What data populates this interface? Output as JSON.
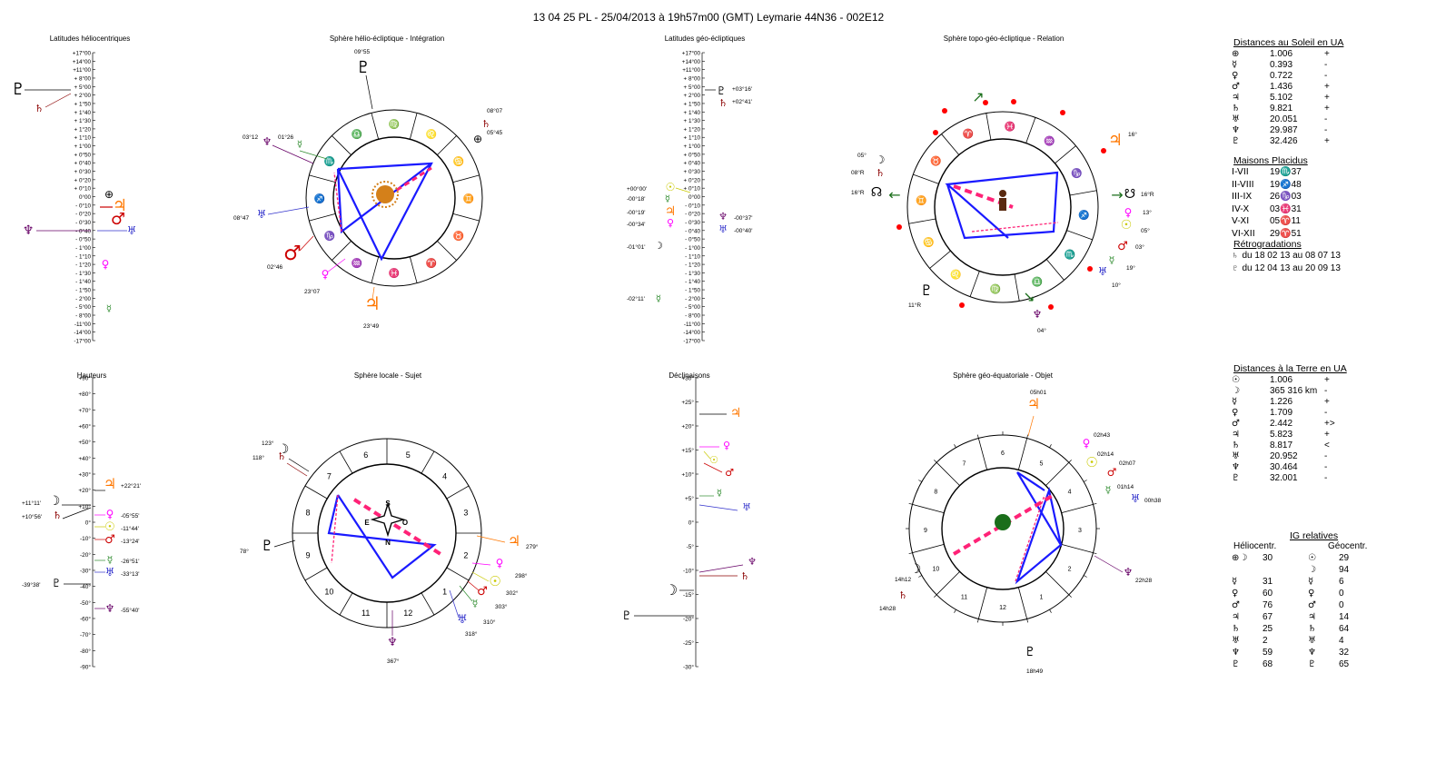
{
  "header": {
    "title": "13 04 25 PL    -   25/04/2013 à 19h57m00 (GMT)  Leymarie  44N36 - 002E12"
  },
  "panels": {
    "helio_lat_title": "Latitudes héliocentriques",
    "helio_sphere_title": "Sphère hélio-écliptique - Intégration",
    "geo_lat_title": "Latitudes géo-écliptiques",
    "topo_sphere_title": "Sphère topo-géo-écliptique - Relation",
    "heights_title": "Hauteurs",
    "local_sphere_title": "Sphère locale - Sujet",
    "decl_title": "Déclinaisons",
    "geo_eq_title": "Sphère géo-équatoriale - Objet"
  },
  "scales": {
    "latitude_ticks": [
      "+17°00",
      "+14°00",
      "+11°00",
      "+ 8°00",
      "+ 5°00",
      "+ 2°00",
      "+ 1°50",
      "+ 1°40",
      "+ 1°30",
      "+ 1°20",
      "+ 1°10",
      "+ 1°00",
      "+ 0°50",
      "+ 0°40",
      "+ 0°30",
      "+ 0°20",
      "+ 0°10",
      "0°00",
      "- 0°10",
      "- 0°20",
      "- 0°30",
      "- 0°40",
      "- 0°50",
      "- 1°00",
      "- 1°10",
      "- 1°20",
      "- 1°30",
      "- 1°40",
      "- 1°50",
      "- 2°00",
      "- 5°00",
      "- 8°00",
      "-11°00",
      "-14°00",
      "-17°00"
    ],
    "height_ticks": [
      "+90°",
      "+80°",
      "+70°",
      "+60°",
      "+50°",
      "+40°",
      "+30°",
      "+20°",
      "+10°",
      "0°",
      "-10°",
      "-20°",
      "-30°",
      "-40°",
      "-50°",
      "-60°",
      "-70°",
      "-80°",
      "-90°"
    ],
    "decl_ticks": [
      "+30°",
      "+25°",
      "+20°",
      "+15°",
      "+10°",
      "+5°",
      "0°",
      "-5°",
      "-10°",
      "-15°",
      "-20°",
      "-25°",
      "-30°"
    ]
  },
  "helio_lat_labels": [],
  "geo_lat_labels": [
    "+03°16'",
    "+02°41'",
    "+00°00'",
    "-00°18'",
    "-00°19'",
    "-00°34'",
    "-01°01'",
    "-00°37'",
    "-00°40'",
    "-02°11'"
  ],
  "helio_sphere_labels": [
    "09°55",
    "08°07",
    "05°45",
    "03°12",
    "01°26",
    "08°47",
    "02°46",
    "23°07",
    "23°49"
  ],
  "topo_sphere_labels": [
    "05°",
    "08°R",
    "16°R",
    "16°",
    "16°R",
    "13°",
    "05°",
    "03°",
    "19°",
    "10°",
    "11°R",
    "04°"
  ],
  "heights_labels": [
    "+22°21'",
    "+11°11'",
    "+10°56'",
    "-05°55'",
    "-11°44'",
    "-13°24'",
    "-26°51'",
    "-33°13'",
    "-39°38'",
    "-55°40'"
  ],
  "local_sphere_labels": [
    "123°",
    "118°",
    "78°",
    "279°",
    "298°",
    "302°",
    "303°",
    "310°",
    "318°",
    "367°"
  ],
  "local_sphere_dirs": [
    "S",
    "E",
    "O",
    "N"
  ],
  "geo_eq_labels": [
    "05h01",
    "02h43",
    "02h14",
    "02h07",
    "01h14",
    "00h38",
    "14h12",
    "14h28",
    "22h28",
    "18h49"
  ],
  "zodiac_signs": [
    "♈",
    "♉",
    "♊",
    "♋",
    "♌",
    "♍",
    "♎",
    "♏",
    "♐",
    "♑",
    "♒",
    "♓"
  ],
  "right": {
    "sun_dist_title": "Distances au Soleil en UA",
    "sun_dist": [
      {
        "sym": "⊕",
        "val": "1.006",
        "t": "+"
      },
      {
        "sym": "☿",
        "val": "0.393",
        "t": "-"
      },
      {
        "sym": "♀",
        "val": "0.722",
        "t": "-"
      },
      {
        "sym": "♂",
        "val": "1.436",
        "t": "+"
      },
      {
        "sym": "♃",
        "val": "5.102",
        "t": "+"
      },
      {
        "sym": "♄",
        "val": "9.821",
        "t": "+"
      },
      {
        "sym": "♅",
        "val": "20.051",
        "t": "-"
      },
      {
        "sym": "♆",
        "val": "29.987",
        "t": "-"
      },
      {
        "sym": "♇",
        "val": "32.426",
        "t": "+"
      }
    ],
    "houses_title": "Maisons Placidus",
    "houses": [
      {
        "k": "I-VII",
        "v": "19♏37"
      },
      {
        "k": "II-VIII",
        "v": "19♐48"
      },
      {
        "k": "III-IX",
        "v": "26♑03"
      },
      {
        "k": "IV-X",
        "v": "03♓31"
      },
      {
        "k": "V-XI",
        "v": "05♈11"
      },
      {
        "k": "VI-XII",
        "v": "29♈51"
      }
    ],
    "retro_title": "Rétrogradations",
    "retro": [
      {
        "sym": "♄",
        "txt": "du 18 02 13 au 08 07 13"
      },
      {
        "sym": "♇",
        "txt": "du 12 04 13 au 20 09 13"
      }
    ],
    "earth_dist_title": "Distances à la Terre en UA",
    "earth_dist": [
      {
        "sym": "☉",
        "val": "1.006",
        "t": "+"
      },
      {
        "sym": "☽",
        "val": "365 316 km",
        "t": "-"
      },
      {
        "sym": "☿",
        "val": "1.226",
        "t": "+"
      },
      {
        "sym": "♀",
        "val": "1.709",
        "t": "-"
      },
      {
        "sym": "♂",
        "val": "2.442",
        "t": "+>"
      },
      {
        "sym": "♃",
        "val": "5.823",
        "t": "+"
      },
      {
        "sym": "♄",
        "val": "8.817",
        "t": "<"
      },
      {
        "sym": "♅",
        "val": "20.952",
        "t": "-"
      },
      {
        "sym": "♆",
        "val": "30.464",
        "t": "-"
      },
      {
        "sym": "♇",
        "val": "32.001",
        "t": "-"
      }
    ],
    "ig_title": "IG relatives",
    "ig_helio_header": "Héliocentr.",
    "ig_geo_header": "Géocentr.",
    "ig": [
      {
        "hs": "⊕☽",
        "hv": "30",
        "gs": "☉",
        "gv": "29"
      },
      {
        "hs": "",
        "hv": "",
        "gs": "☽",
        "gv": "94"
      },
      {
        "hs": "☿",
        "hv": "31",
        "gs": "☿",
        "gv": "6"
      },
      {
        "hs": "♀",
        "hv": "60",
        "gs": "♀",
        "gv": "0"
      },
      {
        "hs": "♂",
        "hv": "76",
        "gs": "♂",
        "gv": "0"
      },
      {
        "hs": "♃",
        "hv": "67",
        "gs": "♃",
        "gv": "14"
      },
      {
        "hs": "♄",
        "hv": "25",
        "gs": "♄",
        "gv": "64"
      },
      {
        "hs": "♅",
        "hv": "2",
        "gs": "♅",
        "gv": "4"
      },
      {
        "hs": "♆",
        "hv": "59",
        "gs": "♆",
        "gv": "32"
      },
      {
        "hs": "♇",
        "hv": "68",
        "gs": "♇",
        "gv": "65"
      }
    ]
  },
  "colors": {
    "blue": "#1a1aff",
    "pink": "#ff2277",
    "orange": "#ff7700",
    "red": "#cc0000",
    "magenta": "#ff00ff",
    "yellow": "#e8e800",
    "green": "#2e8b2e",
    "purple": "#660066",
    "brown": "#8b0000",
    "uranus": "#3333cc"
  }
}
